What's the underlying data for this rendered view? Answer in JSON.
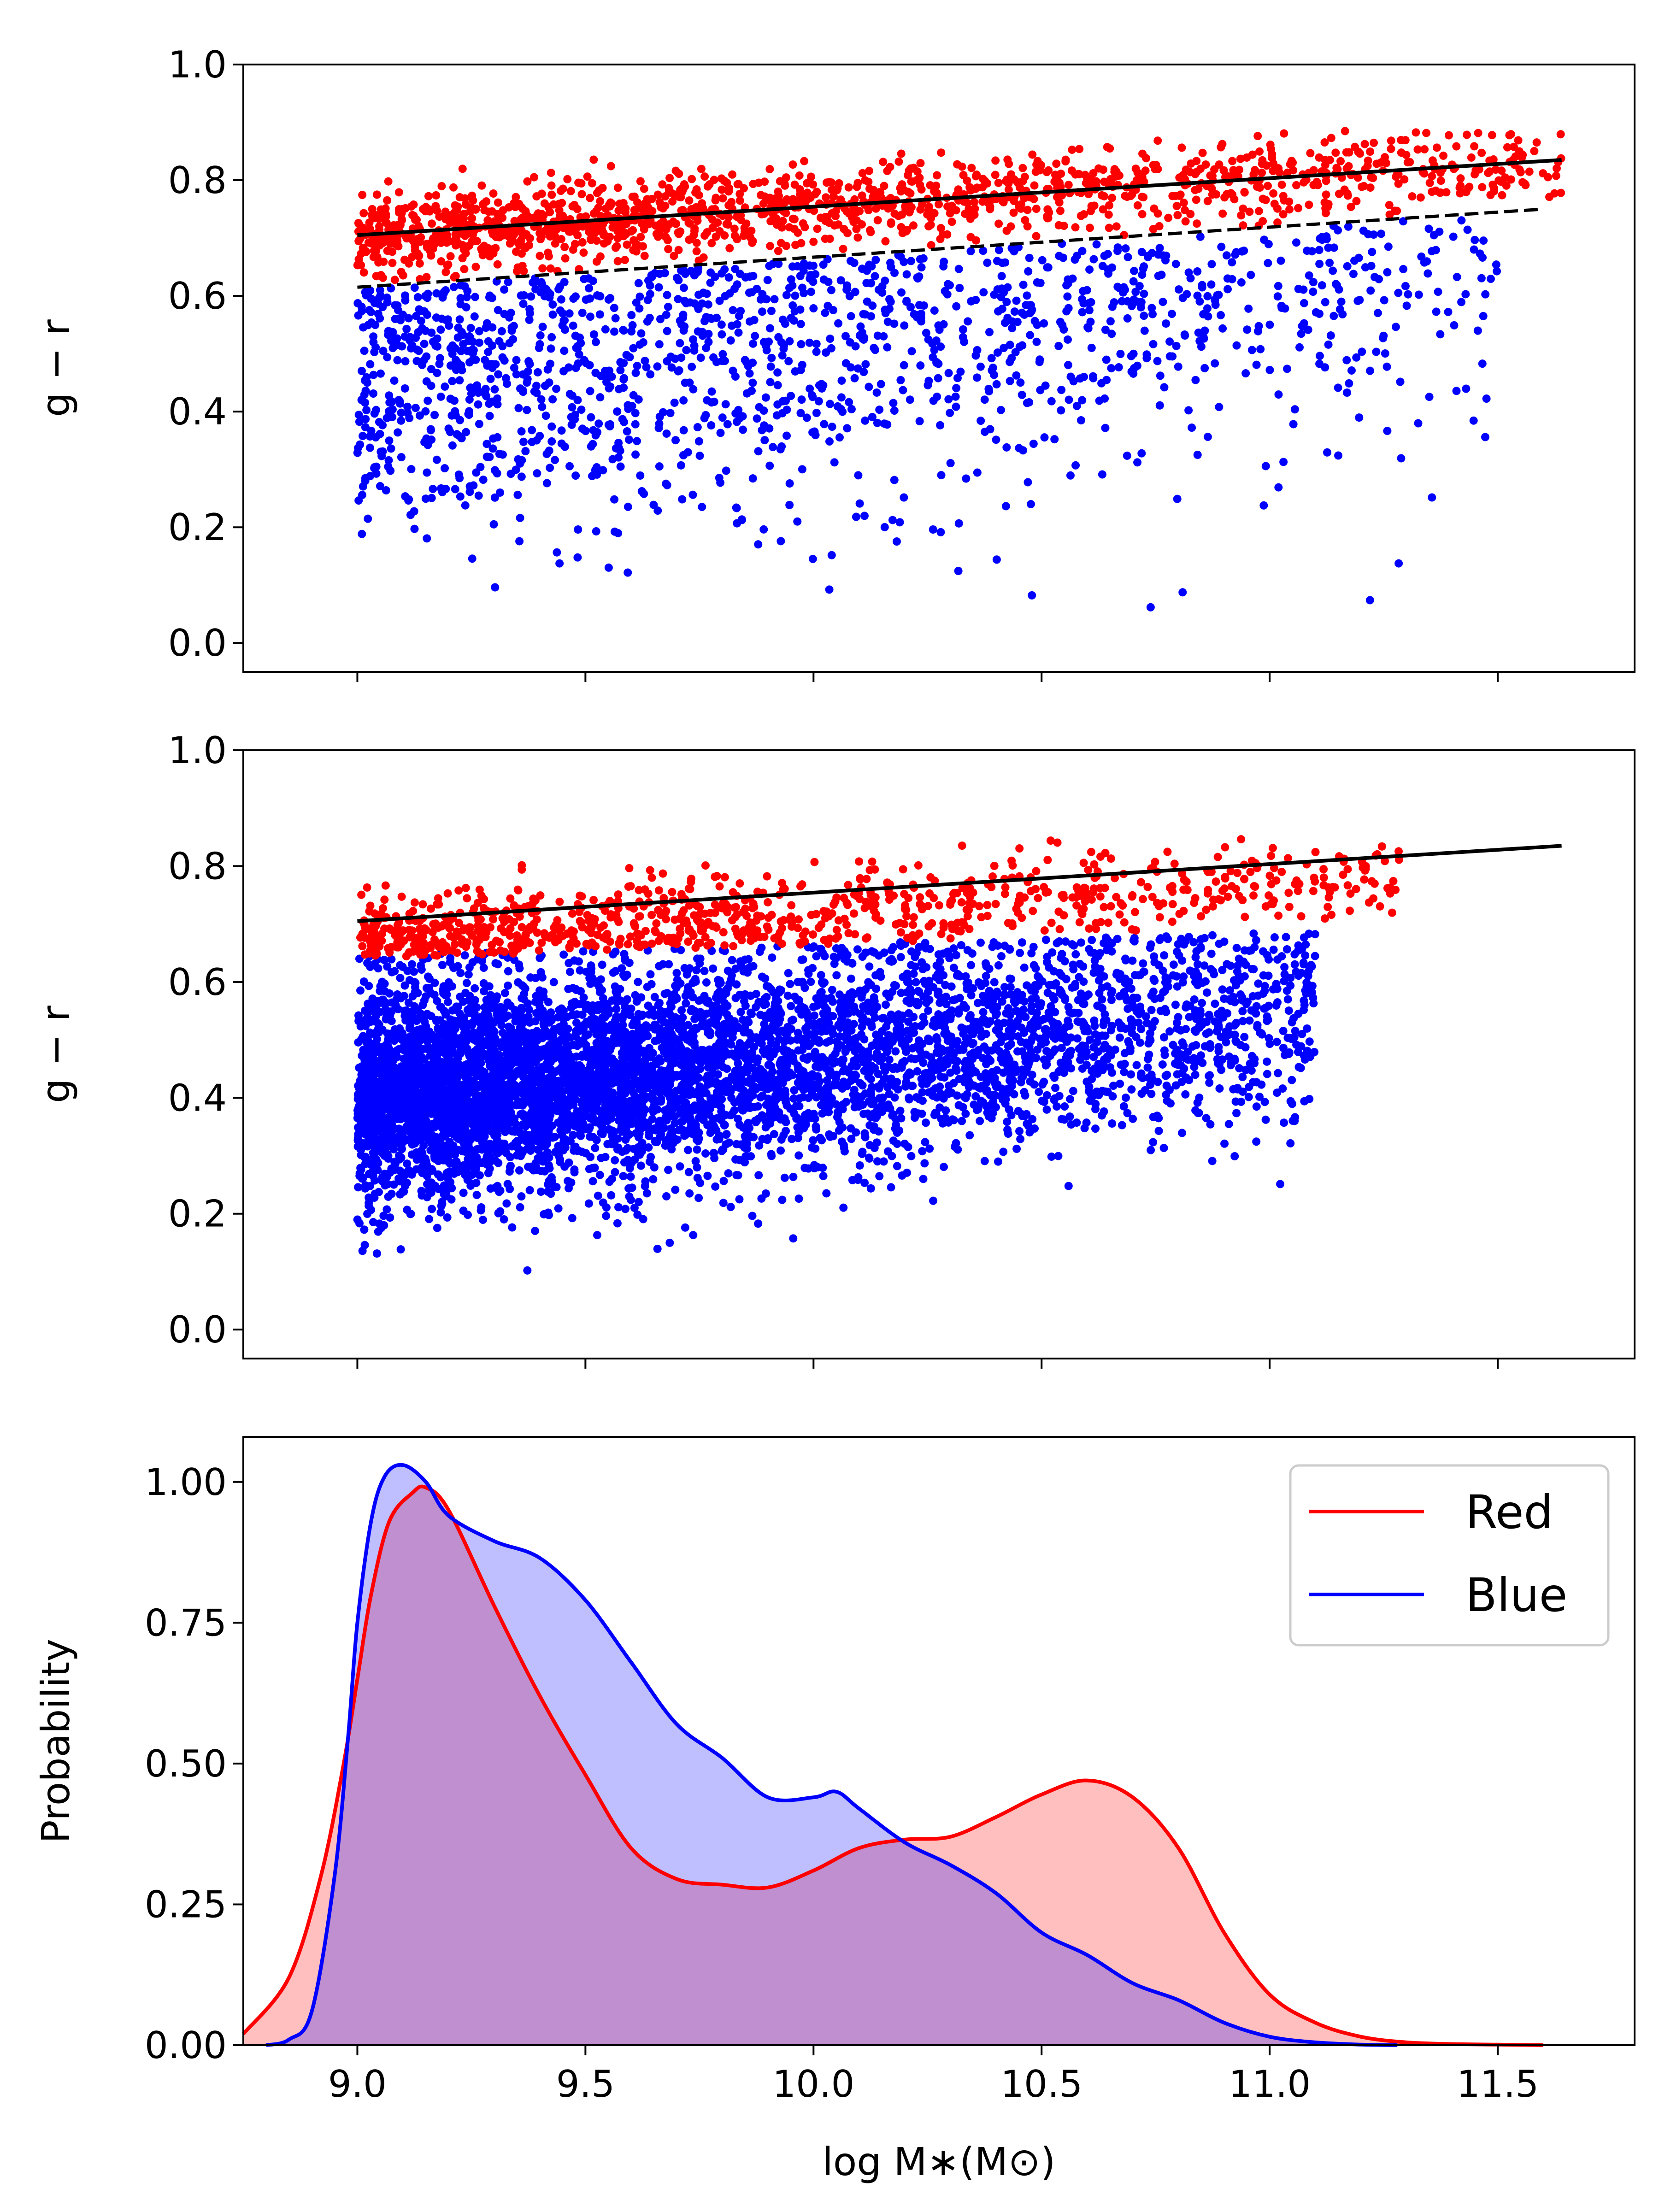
{
  "colors": {
    "red": "#ff0000",
    "blue": "#0000ff",
    "fit": "#000000"
  },
  "chart_data": [
    {
      "type": "scatter",
      "panel": "top",
      "ylabel": "g − r",
      "xlim": [
        8.75,
        11.8
      ],
      "ylim": [
        -0.05,
        1.0
      ],
      "yticks": [
        "0.0",
        "0.2",
        "0.4",
        "0.6",
        "0.8",
        "1.0"
      ],
      "red_sequence_fit": {
        "x": [
          9.0,
          11.64
        ],
        "y": [
          0.705,
          0.835
        ]
      },
      "divider": {
        "x": [
          9.0,
          11.6
        ],
        "y": [
          0.615,
          0.75
        ]
      },
      "series": [
        {
          "color": "red",
          "points": 1400,
          "x_range": [
            9.0,
            11.64
          ],
          "y": "between divider and ~0.88"
        },
        {
          "color": "blue",
          "points": 1500,
          "x_range": [
            9.0,
            11.5
          ],
          "y": "below divider, down to ~0.06"
        }
      ]
    },
    {
      "type": "scatter",
      "panel": "middle",
      "ylabel": "g − r",
      "xlim": [
        8.75,
        11.8
      ],
      "ylim": [
        -0.05,
        1.0
      ],
      "yticks": [
        "0.0",
        "0.2",
        "0.4",
        "0.6",
        "0.8",
        "1.0"
      ],
      "red_sequence_fit": {
        "x": [
          9.0,
          11.64
        ],
        "y": [
          0.705,
          0.835
        ]
      },
      "series": [
        {
          "color": "red",
          "points": 900,
          "x_range": [
            9.0,
            11.3
          ],
          "y": "~0.64 to ~0.92"
        },
        {
          "color": "blue",
          "points": 6000,
          "x_range": [
            9.0,
            11.1
          ],
          "y": "~0.10 to ~0.68"
        }
      ]
    },
    {
      "type": "area",
      "panel": "bottom",
      "xlabel": "log M∗(M⊙)",
      "ylabel": "Probability",
      "xlim": [
        8.75,
        11.8
      ],
      "ylim": [
        0.0,
        1.08
      ],
      "xticks": [
        "9.0",
        "9.5",
        "10.0",
        "10.5",
        "11.0",
        "11.5"
      ],
      "yticks": [
        "0.00",
        "0.25",
        "0.50",
        "0.75",
        "1.00"
      ],
      "legend": {
        "position": "top-right",
        "entries": [
          "Red",
          "Blue"
        ]
      },
      "series": [
        {
          "name": "Red",
          "color": "red",
          "x": [
            8.75,
            8.85,
            8.92,
            8.97,
            9.0,
            9.03,
            9.07,
            9.12,
            9.15,
            9.2,
            9.3,
            9.4,
            9.5,
            9.6,
            9.7,
            9.8,
            9.9,
            10.0,
            10.1,
            10.2,
            10.3,
            10.4,
            10.5,
            10.6,
            10.7,
            10.8,
            10.9,
            11.0,
            11.1,
            11.2,
            11.3,
            11.4,
            11.5,
            11.6
          ],
          "y": [
            0.02,
            0.12,
            0.3,
            0.5,
            0.65,
            0.8,
            0.93,
            0.98,
            0.99,
            0.95,
            0.78,
            0.62,
            0.48,
            0.35,
            0.295,
            0.285,
            0.28,
            0.31,
            0.35,
            0.365,
            0.37,
            0.405,
            0.445,
            0.47,
            0.44,
            0.35,
            0.2,
            0.09,
            0.04,
            0.015,
            0.005,
            0.002,
            0.001,
            0.0
          ]
        },
        {
          "name": "Blue",
          "color": "blue",
          "x": [
            8.8,
            8.85,
            8.9,
            8.95,
            8.98,
            9.0,
            9.03,
            9.06,
            9.1,
            9.15,
            9.2,
            9.3,
            9.4,
            9.5,
            9.6,
            9.7,
            9.8,
            9.9,
            10.0,
            10.05,
            10.1,
            10.2,
            10.3,
            10.4,
            10.5,
            10.6,
            10.7,
            10.8,
            10.9,
            11.0,
            11.1,
            11.2,
            11.28
          ],
          "y": [
            0.0,
            0.01,
            0.06,
            0.3,
            0.55,
            0.75,
            0.93,
            1.01,
            1.03,
            1.0,
            0.94,
            0.895,
            0.865,
            0.79,
            0.68,
            0.57,
            0.51,
            0.44,
            0.44,
            0.45,
            0.42,
            0.36,
            0.32,
            0.27,
            0.2,
            0.16,
            0.11,
            0.08,
            0.04,
            0.015,
            0.005,
            0.001,
            0.0
          ]
        }
      ]
    }
  ]
}
